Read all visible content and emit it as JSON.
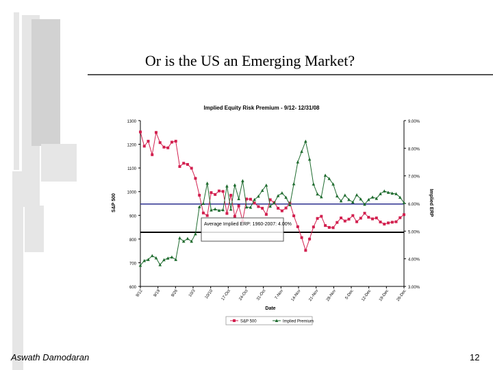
{
  "slide": {
    "title": "Or is the US an Emerging Market?",
    "author": "Aswath Damodaran",
    "page_number": "12"
  },
  "chart_data": {
    "type": "line",
    "title": "Implied Equity Risk Premium - 9/12- 12/31/08",
    "xlabel": "Date",
    "ylabel_left": "S&P 500",
    "ylabel_right": "Implied ERP",
    "ylim_left": [
      600,
      1300
    ],
    "ylim_right": [
      0.03,
      0.09
    ],
    "yticks_left": [
      "1300",
      "1200",
      "1100",
      "1000",
      "900",
      "800",
      "700",
      "600"
    ],
    "yticks_right": [
      "9.00%",
      "8.00%",
      "7.00%",
      "6.00%",
      "5.00%",
      "4.00%",
      "3.00%"
    ],
    "x_tick_labels": [
      "9/12",
      "9/19",
      "9/26",
      "10/3",
      "10/10",
      "17-Oct",
      "24-Oct",
      "31-Oct",
      "7-Nov",
      "14-Nov",
      "21-Nov",
      "28-Nov",
      "5-Dec",
      "12-Dec",
      "19-Dec",
      "26-Dec"
    ],
    "legend": [
      "S&P 500",
      "Implied Premium"
    ],
    "legend_position": "bottom",
    "grid": false,
    "reference_lines": [
      {
        "axis": "right",
        "value": 0.0598,
        "color": "#2b2f8f"
      },
      {
        "axis": "right",
        "value": 0.0496,
        "color": "#000000"
      }
    ],
    "annotation": {
      "text": "Average Implied ERP: 1960-2007: 4.00%"
    },
    "series": [
      {
        "name": "S&P 500",
        "axis": "left",
        "color": "#d2204f",
        "values": [
          1252,
          1192,
          1213,
          1156,
          1250,
          1207,
          1188,
          1185,
          1209,
          1213,
          1106,
          1120,
          1115,
          1099,
          1056,
          985,
          910,
          899,
          996,
          988,
          1003,
          1001,
          908,
          985,
          896,
          940,
          877,
          969,
          968,
          952,
          937,
          930,
          904,
          966,
          954,
          930,
          919,
          931,
          952,
          898,
          852,
          806,
          752,
          800,
          851,
          887,
          896,
          857,
          849,
          848,
          870,
          889,
          876,
          884,
          899,
          873,
          888,
          909,
          892,
          885,
          889,
          872,
          863,
          868,
          871,
          873,
          890,
          903
        ]
      },
      {
        "name": "Implied Premium",
        "axis": "right",
        "color": "#1e6b2e",
        "values": [
          0.0376,
          0.0393,
          0.0397,
          0.0411,
          0.0403,
          0.0378,
          0.0396,
          0.0402,
          0.0406,
          0.0397,
          0.0475,
          0.0463,
          0.0473,
          0.0463,
          0.049,
          0.0588,
          0.06,
          0.0673,
          0.0576,
          0.058,
          0.0575,
          0.0577,
          0.0663,
          0.0579,
          0.0667,
          0.0617,
          0.0682,
          0.0587,
          0.0586,
          0.0614,
          0.0626,
          0.0647,
          0.0666,
          0.059,
          0.0602,
          0.0628,
          0.0638,
          0.0622,
          0.0595,
          0.0671,
          0.075,
          0.0788,
          0.0825,
          0.076,
          0.067,
          0.0634,
          0.0624,
          0.0702,
          0.069,
          0.067,
          0.0627,
          0.0609,
          0.063,
          0.0614,
          0.0605,
          0.0631,
          0.0616,
          0.0597,
          0.0614,
          0.0623,
          0.0618,
          0.0635,
          0.0645,
          0.064,
          0.0637,
          0.0635,
          0.0622,
          0.0603
        ]
      }
    ]
  }
}
